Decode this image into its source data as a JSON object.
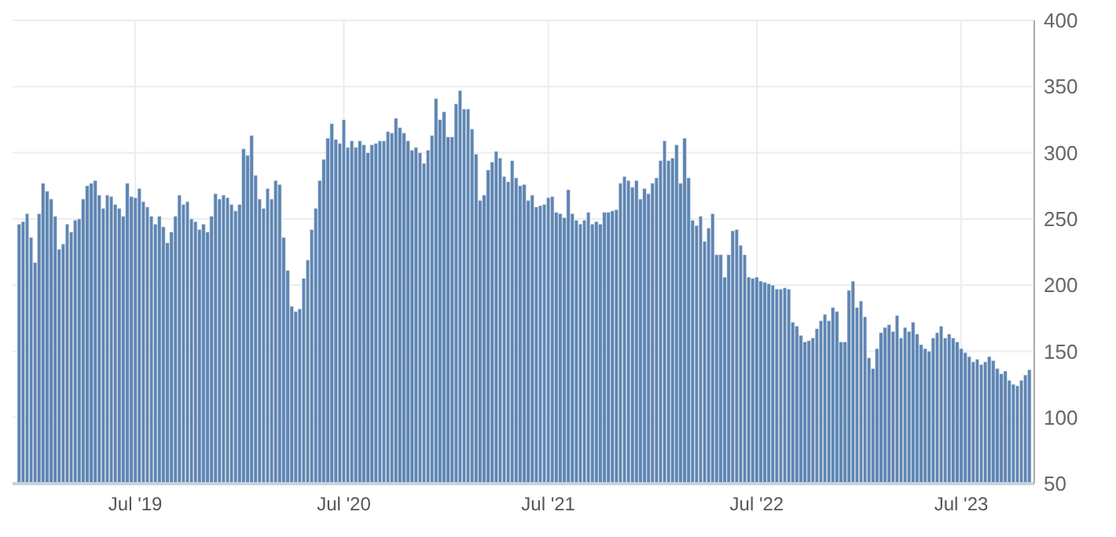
{
  "chart_data": {
    "type": "bar",
    "color": "#5f86b3",
    "ylim": [
      50,
      400
    ],
    "yticks": [
      50,
      100,
      150,
      200,
      250,
      300,
      350,
      400
    ],
    "grid": true,
    "categories": [
      null,
      null,
      null,
      null,
      null,
      null,
      null,
      null,
      null,
      null,
      null,
      null,
      null,
      null,
      null,
      null,
      null,
      null,
      null,
      null,
      null,
      null,
      null,
      null,
      null,
      null,
      null,
      null,
      null,
      "Jul '19",
      null,
      null,
      null,
      null,
      null,
      null,
      null,
      null,
      null,
      null,
      null,
      null,
      null,
      null,
      null,
      null,
      null,
      null,
      null,
      null,
      null,
      null,
      null,
      null,
      null,
      null,
      null,
      null,
      null,
      null,
      null,
      null,
      null,
      null,
      null,
      null,
      null,
      null,
      null,
      null,
      null,
      null,
      null,
      null,
      null,
      null,
      null,
      null,
      null,
      null,
      null,
      "Jul '20",
      null,
      null,
      null,
      null,
      null,
      null,
      null,
      null,
      null,
      null,
      null,
      null,
      null,
      null,
      null,
      null,
      null,
      null,
      null,
      null,
      null,
      null,
      null,
      null,
      null,
      null,
      null,
      null,
      null,
      null,
      null,
      null,
      null,
      null,
      null,
      null,
      null,
      null,
      null,
      null,
      null,
      null,
      null,
      null,
      null,
      null,
      null,
      null,
      null,
      null,
      "Jul '21",
      null,
      null,
      null,
      null,
      null,
      null,
      null,
      null,
      null,
      null,
      null,
      null,
      null,
      null,
      null,
      null,
      null,
      null,
      null,
      null,
      null,
      null,
      null,
      null,
      null,
      null,
      null,
      null,
      null,
      null,
      null,
      null,
      null,
      null,
      null,
      null,
      null,
      null,
      null,
      null,
      null,
      null,
      null,
      null,
      null,
      null,
      null,
      null,
      null,
      null,
      null,
      "Jul '22",
      null,
      null,
      null,
      null,
      null,
      null,
      null,
      null,
      null,
      null,
      null,
      null,
      null,
      null,
      null,
      null,
      null,
      null,
      null,
      null,
      null,
      null,
      null,
      null,
      null,
      null,
      null,
      null,
      null,
      null,
      null,
      null,
      null,
      null,
      null,
      null,
      null,
      null,
      null,
      null,
      null,
      null,
      null,
      null,
      null,
      null,
      null,
      null,
      null,
      null,
      "Jul '23",
      null,
      null,
      null,
      null,
      null,
      null,
      null,
      null,
      null,
      null,
      null,
      null,
      null,
      null,
      null,
      null,
      null
    ],
    "values": [
      246,
      248,
      254,
      236,
      217,
      254,
      277,
      271,
      265,
      252,
      227,
      231,
      246,
      240,
      249,
      250,
      265,
      275,
      277,
      279,
      268,
      258,
      268,
      267,
      261,
      258,
      252,
      277,
      267,
      266,
      273,
      263,
      259,
      252,
      246,
      252,
      244,
      232,
      240,
      252,
      268,
      261,
      263,
      250,
      248,
      242,
      246,
      240,
      252,
      269,
      265,
      268,
      266,
      261,
      256,
      261,
      303,
      298,
      313,
      283,
      265,
      258,
      273,
      265,
      279,
      276,
      236,
      211,
      184,
      180,
      182,
      205,
      219,
      242,
      258,
      279,
      295,
      311,
      322,
      310,
      307,
      325,
      304,
      309,
      304,
      309,
      306,
      300,
      306,
      307,
      309,
      309,
      316,
      315,
      326,
      319,
      315,
      309,
      302,
      304,
      300,
      292,
      302,
      313,
      341,
      325,
      331,
      312,
      312,
      337,
      347,
      333,
      333,
      318,
      299,
      264,
      268,
      287,
      293,
      301,
      296,
      282,
      278,
      294,
      281,
      275,
      276,
      264,
      268,
      259,
      260,
      261,
      266,
      267,
      255,
      254,
      251,
      272,
      254,
      249,
      246,
      249,
      255,
      246,
      248,
      246,
      255,
      255,
      256,
      257,
      277,
      282,
      279,
      274,
      279,
      265,
      273,
      269,
      277,
      281,
      294,
      309,
      294,
      296,
      306,
      277,
      311,
      281,
      249,
      245,
      252,
      233,
      243,
      254,
      223,
      223,
      206,
      223,
      241,
      242,
      230,
      223,
      206,
      205,
      206,
      203,
      202,
      201,
      200,
      197,
      197,
      198,
      197,
      172,
      169,
      162,
      157,
      158,
      160,
      167,
      173,
      178,
      173,
      183,
      180,
      157,
      157,
      196,
      203,
      183,
      188,
      176,
      145,
      137,
      152,
      164,
      168,
      170,
      165,
      177,
      160,
      168,
      165,
      172,
      163,
      155,
      152,
      150,
      160,
      164,
      169,
      160,
      163,
      160,
      157,
      152,
      149,
      146,
      142,
      144,
      140,
      142,
      146,
      143,
      137,
      133,
      135,
      128,
      125,
      124,
      128,
      132,
      136
    ]
  }
}
